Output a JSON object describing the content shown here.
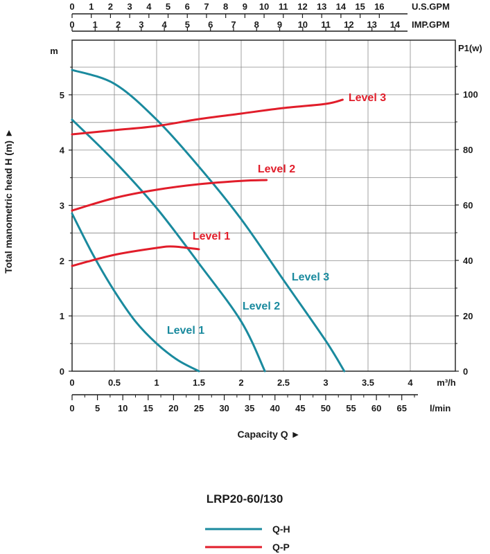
{
  "chart_data": {
    "type": "line",
    "model": "LRP20-60/130",
    "colors": {
      "qh": "#1a8a9e",
      "qp": "#e11d2a",
      "grid": "#8a8a8a"
    },
    "x_axis": {
      "title": "Capacity Q ►",
      "unit_m3h": "m³/h",
      "unit_lmin": "l/min",
      "unit_usgpm": "U.S.GPM",
      "unit_impgpm": "IMP.GPM",
      "range_m3h": [
        0,
        4.5
      ],
      "ticks_m3h": [
        "0",
        "0.5",
        "1",
        "1.5",
        "2",
        "2.5",
        "3",
        "3.5",
        "4"
      ],
      "ticks_lmin": [
        "0",
        "5",
        "10",
        "15",
        "20",
        "25",
        "30",
        "35",
        "40",
        "45",
        "50",
        "55",
        "60",
        "65"
      ],
      "ticks_usgpm": [
        "0",
        "1",
        "2",
        "3",
        "4",
        "5",
        "6",
        "7",
        "8",
        "9",
        "10",
        "11",
        "12",
        "13",
        "14",
        "15",
        "16"
      ],
      "ticks_impgpm": [
        "0",
        "1",
        "2",
        "3",
        "4",
        "5",
        "6",
        "7",
        "8",
        "9",
        "10",
        "11",
        "12",
        "13",
        "14"
      ]
    },
    "y_left": {
      "title": "Total manometric head H (m) ►",
      "unit": "m",
      "range": [
        0,
        6
      ],
      "ticks": [
        "0",
        "1",
        "2",
        "3",
        "4",
        "5"
      ]
    },
    "y_right": {
      "unit": "P1(w)",
      "range": [
        0,
        120
      ],
      "ticks": [
        "0",
        "20",
        "40",
        "60",
        "80",
        "100"
      ]
    },
    "legend": [
      {
        "label": "Q-H",
        "key": "qh"
      },
      {
        "label": "Q-P",
        "key": "qp"
      }
    ],
    "qh_series": [
      {
        "name": "Level 1",
        "points": [
          [
            0,
            2.85
          ],
          [
            0.25,
            2.1
          ],
          [
            0.5,
            1.45
          ],
          [
            0.75,
            0.9
          ],
          [
            1.0,
            0.5
          ],
          [
            1.25,
            0.2
          ],
          [
            1.5,
            0.0
          ]
        ]
      },
      {
        "name": "Level 2",
        "points": [
          [
            0,
            4.55
          ],
          [
            0.5,
            3.8
          ],
          [
            1.0,
            2.95
          ],
          [
            1.5,
            1.95
          ],
          [
            2.0,
            0.9
          ],
          [
            2.28,
            0.0
          ]
        ]
      },
      {
        "name": "Level 3",
        "points": [
          [
            0,
            5.45
          ],
          [
            0.5,
            5.2
          ],
          [
            1.0,
            4.55
          ],
          [
            1.5,
            3.7
          ],
          [
            2.0,
            2.75
          ],
          [
            2.5,
            1.65
          ],
          [
            3.0,
            0.55
          ],
          [
            3.22,
            0.0
          ]
        ]
      }
    ],
    "qp_series": [
      {
        "name": "Level 1",
        "points": [
          [
            0,
            38
          ],
          [
            0.5,
            42
          ],
          [
            1.0,
            44.5
          ],
          [
            1.2,
            45
          ],
          [
            1.5,
            44
          ]
        ]
      },
      {
        "name": "Level 2",
        "points": [
          [
            0,
            58
          ],
          [
            0.5,
            62.5
          ],
          [
            1.0,
            65.5
          ],
          [
            1.5,
            67.5
          ],
          [
            2.0,
            68.7
          ],
          [
            2.3,
            69
          ]
        ]
      },
      {
        "name": "Level 3",
        "points": [
          [
            0,
            85.5
          ],
          [
            0.5,
            87
          ],
          [
            1.0,
            88.5
          ],
          [
            1.5,
            91
          ],
          [
            2.0,
            93
          ],
          [
            2.5,
            95
          ],
          [
            3.0,
            96.5
          ],
          [
            3.2,
            98
          ]
        ]
      }
    ]
  }
}
